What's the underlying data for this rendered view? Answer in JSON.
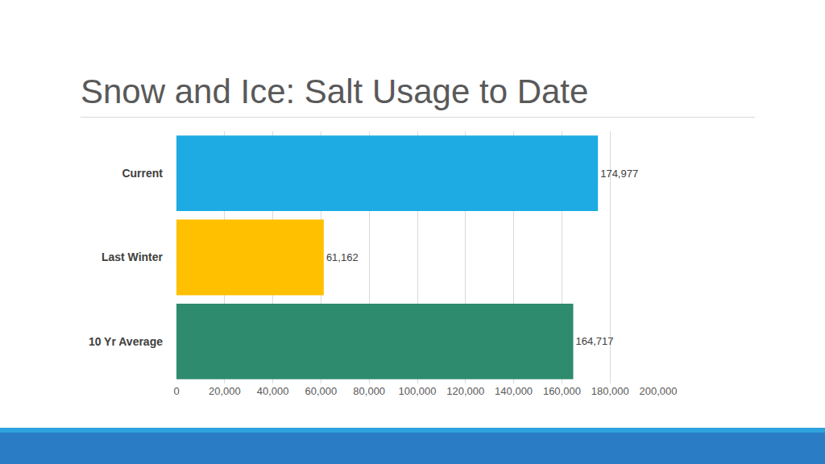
{
  "chart_data": {
    "type": "bar",
    "orientation": "horizontal",
    "title": "Snow and Ice: Salt Usage to Date",
    "categories": [
      "Current",
      "Last Winter",
      "10 Yr Average"
    ],
    "values": [
      174977,
      61162,
      164717
    ],
    "value_labels": [
      "174,977",
      "61,162",
      "164,717"
    ],
    "colors": [
      "#1eabe3",
      "#ffc000",
      "#2e8b6e"
    ],
    "xlim": [
      0,
      200000
    ],
    "xticks": [
      0,
      {
        "value": 20000,
        "label": "20,000"
      },
      {
        "value": 40000,
        "label": "40,000"
      },
      {
        "value": 60000,
        "label": "60,000"
      },
      {
        "value": 80000,
        "label": "80,000"
      },
      {
        "value": 100000,
        "label": "100,000"
      },
      {
        "value": 120000,
        "label": "120,000"
      },
      {
        "value": 140000,
        "label": "140,000"
      },
      {
        "value": 160000,
        "label": "160,000"
      },
      {
        "value": 180000,
        "label": "180,000"
      },
      {
        "value": 200000,
        "label": "200,000"
      }
    ],
    "grid": true,
    "data_labels": true
  }
}
